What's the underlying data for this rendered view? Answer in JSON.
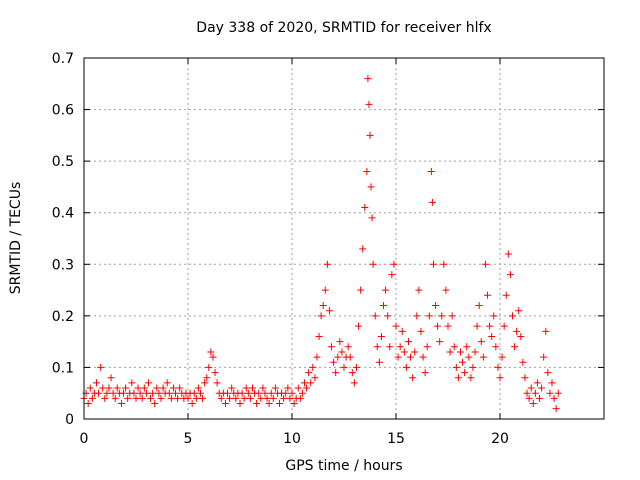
{
  "chart_data": {
    "type": "scatter",
    "title": "Day 338 of 2020, SRMTID for receiver hlfx",
    "xlabel": "GPS time / hours",
    "ylabel": "SRMTID / TECUs",
    "xlim": [
      0,
      25
    ],
    "ylim": [
      0,
      0.7
    ],
    "xticks": [
      0,
      5,
      10,
      15,
      20
    ],
    "yticks": [
      0,
      0.1,
      0.2,
      0.3,
      0.4,
      0.5,
      0.6,
      0.7
    ],
    "grid": true,
    "marker": "+",
    "color": "#ff0000",
    "series": [
      {
        "name": "SRMTID",
        "points": [
          [
            0.0,
            0.04
          ],
          [
            0.1,
            0.05
          ],
          [
            0.2,
            0.03
          ],
          [
            0.3,
            0.06
          ],
          [
            0.4,
            0.04
          ],
          [
            0.5,
            0.05
          ],
          [
            0.6,
            0.07
          ],
          [
            0.7,
            0.05
          ],
          [
            0.8,
            0.1
          ],
          [
            0.9,
            0.06
          ],
          [
            1.0,
            0.04
          ],
          [
            1.1,
            0.05
          ],
          [
            1.2,
            0.06
          ],
          [
            1.3,
            0.08
          ],
          [
            1.4,
            0.05
          ],
          [
            1.5,
            0.04
          ],
          [
            1.6,
            0.06
          ],
          [
            1.7,
            0.05
          ],
          [
            1.8,
            0.03
          ],
          [
            1.9,
            0.05
          ],
          [
            2.0,
            0.06
          ],
          [
            2.1,
            0.04
          ],
          [
            2.2,
            0.05
          ],
          [
            2.3,
            0.07
          ],
          [
            2.4,
            0.05
          ],
          [
            2.5,
            0.04
          ],
          [
            2.6,
            0.06
          ],
          [
            2.7,
            0.05
          ],
          [
            2.8,
            0.04
          ],
          [
            2.9,
            0.06
          ],
          [
            3.0,
            0.05
          ],
          [
            3.1,
            0.07
          ],
          [
            3.2,
            0.04
          ],
          [
            3.3,
            0.05
          ],
          [
            3.4,
            0.03
          ],
          [
            3.5,
            0.06
          ],
          [
            3.6,
            0.05
          ],
          [
            3.7,
            0.04
          ],
          [
            3.8,
            0.06
          ],
          [
            3.9,
            0.05
          ],
          [
            4.0,
            0.07
          ],
          [
            4.1,
            0.05
          ],
          [
            4.2,
            0.04
          ],
          [
            4.3,
            0.06
          ],
          [
            4.4,
            0.05
          ],
          [
            4.5,
            0.04
          ],
          [
            4.6,
            0.06
          ],
          [
            4.7,
            0.05
          ],
          [
            4.8,
            0.04
          ],
          [
            4.9,
            0.05
          ],
          [
            5.0,
            0.04
          ],
          [
            5.1,
            0.05
          ],
          [
            5.2,
            0.03
          ],
          [
            5.3,
            0.05
          ],
          [
            5.4,
            0.04
          ],
          [
            5.5,
            0.06
          ],
          [
            5.6,
            0.05
          ],
          [
            5.7,
            0.04
          ],
          [
            5.8,
            0.07
          ],
          [
            5.9,
            0.08
          ],
          [
            6.0,
            0.1
          ],
          [
            6.1,
            0.13
          ],
          [
            6.2,
            0.12
          ],
          [
            6.3,
            0.09
          ],
          [
            6.4,
            0.07
          ],
          [
            6.5,
            0.05
          ],
          [
            6.6,
            0.04
          ],
          [
            6.7,
            0.05
          ],
          [
            6.8,
            0.03
          ],
          [
            6.9,
            0.05
          ],
          [
            7.0,
            0.04
          ],
          [
            7.1,
            0.06
          ],
          [
            7.2,
            0.05
          ],
          [
            7.3,
            0.04
          ],
          [
            7.4,
            0.05
          ],
          [
            7.5,
            0.03
          ],
          [
            7.6,
            0.05
          ],
          [
            7.7,
            0.04
          ],
          [
            7.8,
            0.06
          ],
          [
            7.9,
            0.05
          ],
          [
            8.0,
            0.04
          ],
          [
            8.1,
            0.06
          ],
          [
            8.2,
            0.05
          ],
          [
            8.3,
            0.03
          ],
          [
            8.4,
            0.05
          ],
          [
            8.5,
            0.04
          ],
          [
            8.6,
            0.06
          ],
          [
            8.7,
            0.05
          ],
          [
            8.8,
            0.04
          ],
          [
            8.9,
            0.03
          ],
          [
            9.0,
            0.05
          ],
          [
            9.1,
            0.04
          ],
          [
            9.2,
            0.06
          ],
          [
            9.3,
            0.05
          ],
          [
            9.4,
            0.03
          ],
          [
            9.5,
            0.05
          ],
          [
            9.6,
            0.04
          ],
          [
            9.7,
            0.05
          ],
          [
            9.8,
            0.06
          ],
          [
            9.9,
            0.04
          ],
          [
            10.0,
            0.05
          ],
          [
            10.1,
            0.03
          ],
          [
            10.2,
            0.04
          ],
          [
            10.3,
            0.06
          ],
          [
            10.4,
            0.04
          ],
          [
            10.5,
            0.05
          ],
          [
            10.6,
            0.07
          ],
          [
            10.7,
            0.06
          ],
          [
            10.8,
            0.09
          ],
          [
            10.9,
            0.07
          ],
          [
            11.0,
            0.1
          ],
          [
            11.1,
            0.08
          ],
          [
            11.2,
            0.12
          ],
          [
            11.3,
            0.16
          ],
          [
            11.4,
            0.2
          ],
          [
            11.5,
            0.22
          ],
          [
            11.6,
            0.25
          ],
          [
            11.7,
            0.3
          ],
          [
            11.8,
            0.21
          ],
          [
            11.9,
            0.14
          ],
          [
            12.0,
            0.11
          ],
          [
            12.1,
            0.09
          ],
          [
            12.2,
            0.12
          ],
          [
            12.3,
            0.15
          ],
          [
            12.4,
            0.13
          ],
          [
            12.5,
            0.1
          ],
          [
            12.6,
            0.12
          ],
          [
            12.7,
            0.14
          ],
          [
            12.8,
            0.12
          ],
          [
            12.9,
            0.09
          ],
          [
            13.0,
            0.07
          ],
          [
            13.1,
            0.1
          ],
          [
            13.2,
            0.18
          ],
          [
            13.3,
            0.25
          ],
          [
            13.4,
            0.33
          ],
          [
            13.5,
            0.41
          ],
          [
            13.6,
            0.48
          ],
          [
            13.65,
            0.66
          ],
          [
            13.7,
            0.61
          ],
          [
            13.75,
            0.55
          ],
          [
            13.8,
            0.45
          ],
          [
            13.85,
            0.39
          ],
          [
            13.9,
            0.3
          ],
          [
            14.0,
            0.2
          ],
          [
            14.1,
            0.14
          ],
          [
            14.2,
            0.11
          ],
          [
            14.3,
            0.16
          ],
          [
            14.4,
            0.22
          ],
          [
            14.5,
            0.25
          ],
          [
            14.6,
            0.2
          ],
          [
            14.7,
            0.14
          ],
          [
            14.8,
            0.28
          ],
          [
            14.9,
            0.3
          ],
          [
            15.0,
            0.18
          ],
          [
            15.1,
            0.12
          ],
          [
            15.2,
            0.14
          ],
          [
            15.3,
            0.17
          ],
          [
            15.4,
            0.13
          ],
          [
            15.5,
            0.1
          ],
          [
            15.6,
            0.15
          ],
          [
            15.7,
            0.12
          ],
          [
            15.8,
            0.08
          ],
          [
            15.9,
            0.13
          ],
          [
            16.0,
            0.2
          ],
          [
            16.1,
            0.25
          ],
          [
            16.2,
            0.17
          ],
          [
            16.3,
            0.12
          ],
          [
            16.4,
            0.09
          ],
          [
            16.5,
            0.14
          ],
          [
            16.6,
            0.2
          ],
          [
            16.7,
            0.48
          ],
          [
            16.75,
            0.42
          ],
          [
            16.8,
            0.3
          ],
          [
            16.9,
            0.22
          ],
          [
            17.0,
            0.18
          ],
          [
            17.1,
            0.15
          ],
          [
            17.2,
            0.2
          ],
          [
            17.3,
            0.3
          ],
          [
            17.4,
            0.25
          ],
          [
            17.5,
            0.18
          ],
          [
            17.6,
            0.13
          ],
          [
            17.7,
            0.2
          ],
          [
            17.8,
            0.14
          ],
          [
            17.9,
            0.1
          ],
          [
            18.0,
            0.08
          ],
          [
            18.1,
            0.13
          ],
          [
            18.2,
            0.11
          ],
          [
            18.3,
            0.09
          ],
          [
            18.4,
            0.14
          ],
          [
            18.5,
            0.12
          ],
          [
            18.6,
            0.08
          ],
          [
            18.7,
            0.1
          ],
          [
            18.8,
            0.13
          ],
          [
            18.9,
            0.18
          ],
          [
            19.0,
            0.22
          ],
          [
            19.1,
            0.15
          ],
          [
            19.2,
            0.12
          ],
          [
            19.3,
            0.3
          ],
          [
            19.4,
            0.24
          ],
          [
            19.5,
            0.18
          ],
          [
            19.6,
            0.16
          ],
          [
            19.7,
            0.2
          ],
          [
            19.8,
            0.14
          ],
          [
            19.9,
            0.1
          ],
          [
            20.0,
            0.08
          ],
          [
            20.1,
            0.12
          ],
          [
            20.2,
            0.18
          ],
          [
            20.3,
            0.24
          ],
          [
            20.4,
            0.32
          ],
          [
            20.5,
            0.28
          ],
          [
            20.6,
            0.2
          ],
          [
            20.7,
            0.14
          ],
          [
            20.8,
            0.17
          ],
          [
            20.9,
            0.21
          ],
          [
            21.0,
            0.16
          ],
          [
            21.1,
            0.11
          ],
          [
            21.2,
            0.08
          ],
          [
            21.3,
            0.05
          ],
          [
            21.4,
            0.04
          ],
          [
            21.5,
            0.06
          ],
          [
            21.6,
            0.03
          ],
          [
            21.7,
            0.05
          ],
          [
            21.8,
            0.07
          ],
          [
            21.9,
            0.04
          ],
          [
            22.0,
            0.06
          ],
          [
            22.1,
            0.12
          ],
          [
            22.2,
            0.17
          ],
          [
            22.3,
            0.09
          ],
          [
            22.4,
            0.05
          ],
          [
            22.5,
            0.07
          ],
          [
            22.6,
            0.04
          ],
          [
            22.7,
            0.02
          ],
          [
            22.8,
            0.05
          ]
        ]
      }
    ]
  }
}
